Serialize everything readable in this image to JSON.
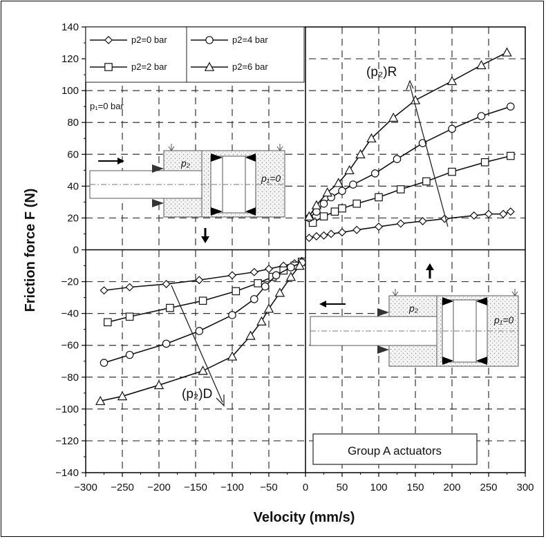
{
  "chart_data": {
    "type": "line",
    "xlabel": "Velocity (mm/s)",
    "ylabel": "Friction force  F (N)",
    "xlim": [
      -300,
      300
    ],
    "ylim": [
      -140,
      140
    ],
    "xticks": [
      -300,
      -250,
      -200,
      -150,
      -100,
      -50,
      0,
      50,
      100,
      150,
      200,
      250,
      300
    ],
    "yticks": [
      -140,
      -120,
      -100,
      -80,
      -60,
      -40,
      -20,
      0,
      20,
      40,
      60,
      80,
      100,
      120,
      140
    ],
    "grid": true,
    "legend_position": "top-left",
    "series": [
      {
        "name": "p2=0 bar",
        "marker": "diamond",
        "positive": {
          "x": [
            5,
            15,
            25,
            35,
            50,
            70,
            100,
            130,
            160,
            190,
            230,
            250,
            270,
            280
          ],
          "y": [
            7.5,
            8.5,
            9,
            10,
            11,
            12.5,
            14.5,
            16.5,
            18,
            19.5,
            21.5,
            22.5,
            22.5,
            24
          ]
        },
        "negative": {
          "x": [
            -275,
            -240,
            -190,
            -145,
            -100,
            -70,
            -50,
            -30,
            -15,
            -5
          ],
          "y": [
            -25.5,
            -23.5,
            -21.5,
            -19,
            -16,
            -14,
            -12,
            -10,
            -8.5,
            -7
          ]
        }
      },
      {
        "name": "p2=2 bar",
        "marker": "square",
        "positive": {
          "x": [
            10,
            25,
            40,
            50,
            70,
            100,
            130,
            165,
            200,
            245,
            280
          ],
          "y": [
            17,
            21,
            24,
            26,
            29,
            33,
            38,
            43,
            49,
            55,
            59
          ]
        },
        "negative": {
          "x": [
            -270,
            -240,
            -185,
            -140,
            -95,
            -65,
            -45,
            -30,
            -15,
            -5
          ],
          "y": [
            -45.5,
            -42,
            -36.5,
            -32,
            -26,
            -21,
            -17,
            -13,
            -10,
            -7.5
          ]
        }
      },
      {
        "name": "p2=4 bar",
        "marker": "circle",
        "positive": {
          "x": [
            5,
            15,
            25,
            35,
            50,
            65,
            95,
            125,
            160,
            200,
            240,
            280
          ],
          "y": [
            20,
            24,
            29,
            33,
            37,
            41,
            48,
            57,
            67,
            76,
            84,
            90
          ]
        },
        "negative": {
          "x": [
            -275,
            -240,
            -190,
            -145,
            -100,
            -70,
            -55,
            -40,
            -20,
            -5
          ],
          "y": [
            -71,
            -66,
            -59,
            -51,
            -41,
            -31,
            -23,
            -16,
            -11,
            -8
          ]
        }
      },
      {
        "name": "p2=6 bar",
        "marker": "triangle",
        "positive": {
          "x": [
            5,
            15,
            30,
            45,
            60,
            75,
            90,
            120,
            150,
            200,
            240,
            275
          ],
          "y": [
            21,
            28,
            36,
            42,
            50,
            60,
            70,
            83,
            94,
            106,
            116,
            124
          ]
        },
        "negative": {
          "x": [
            -280,
            -250,
            -200,
            -140,
            -100,
            -75,
            -60,
            -50,
            -35,
            -20,
            -8
          ],
          "y": [
            -95,
            -92,
            -85,
            -76,
            -67,
            -54,
            -45,
            -37,
            -27,
            -17,
            -10
          ]
        }
      }
    ],
    "annotations": {
      "p1": "p₁=0 bar",
      "p2R": "(p₂)R",
      "p2D": "(p₂)D",
      "inset_p2": "p₂",
      "inset_p1": "p₁=0",
      "group": "Group A actuators"
    }
  }
}
